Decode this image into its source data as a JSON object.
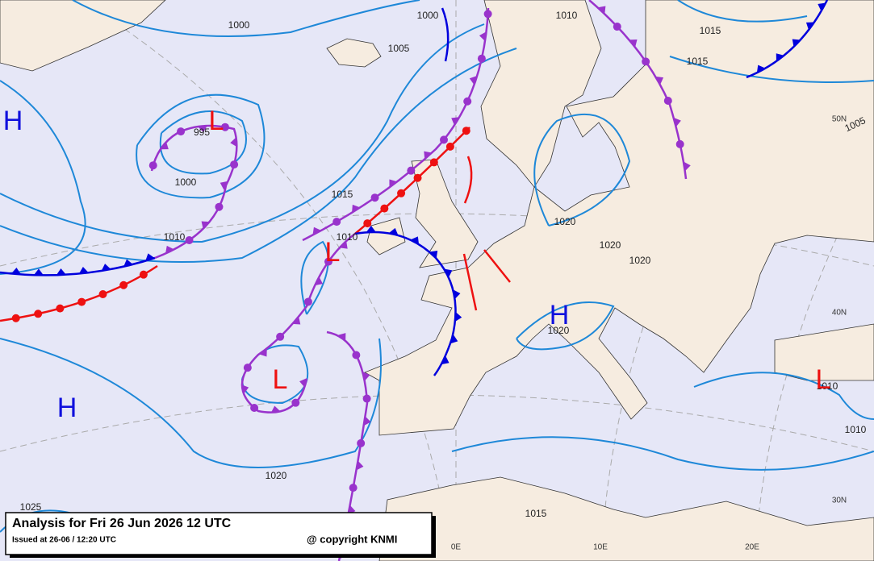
{
  "title": "Analysis for Fri 26 Jun 2026 12 UTC",
  "issued": "Issued at 26-06 / 12:20 UTC",
  "copyright": "@ copyright KNMI",
  "pressure_labels": [
    "1000",
    "1000",
    "1005",
    "1010",
    "1015",
    "1015",
    "995",
    "1000",
    "1015",
    "1010",
    "1010",
    "1020",
    "1020",
    "1020",
    "1020",
    "1010",
    "1010",
    "1020",
    "1015",
    "1005",
    "1025"
  ],
  "centers": [
    "H",
    "L",
    "L",
    "H",
    "L",
    "H",
    "L"
  ],
  "grid_labels": [
    "50N",
    "40N",
    "30N",
    "0E",
    "10E",
    "20E"
  ]
}
